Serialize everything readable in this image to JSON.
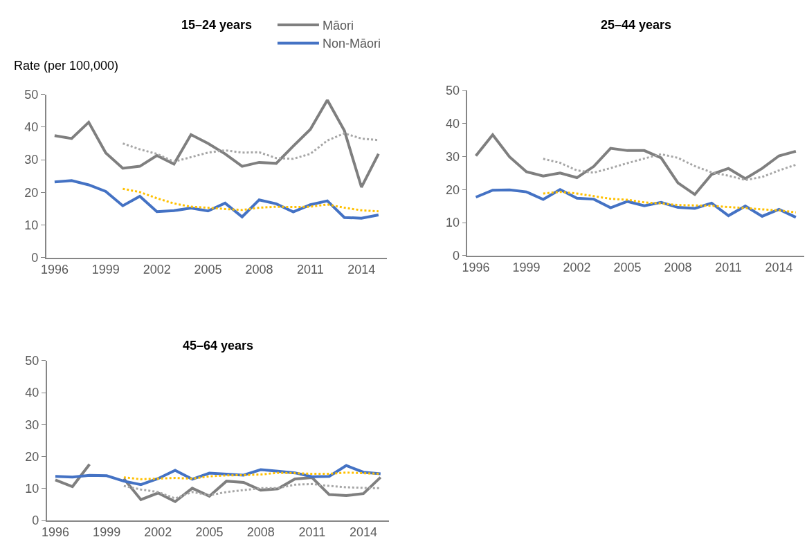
{
  "chart_data": [
    {
      "type": "line",
      "title": "15–24 years",
      "ylabel": "Rate (per 100,000)",
      "x": [
        1996,
        1997,
        1998,
        1999,
        2000,
        2001,
        2002,
        2003,
        2004,
        2005,
        2006,
        2007,
        2008,
        2009,
        2010,
        2011,
        2012,
        2013,
        2014,
        2015
      ],
      "xlim": [
        1995.5,
        2015.5
      ],
      "xticks": [
        1996,
        1999,
        2002,
        2005,
        2008,
        2011,
        2014
      ],
      "ylim": [
        0,
        50
      ],
      "yticks": [
        0,
        10,
        20,
        30,
        40,
        50
      ],
      "legend": "top",
      "marker": "none",
      "line_style": "solid",
      "series": [
        {
          "name": "Māori",
          "color": "#7f7f7f",
          "values": [
            37.4,
            36.5,
            41.5,
            32.1,
            27.4,
            28.0,
            31.3,
            28.7,
            37.7,
            35.0,
            31.8,
            28.0,
            29.2,
            28.9,
            34.2,
            39.3,
            48.3,
            38.9,
            21.6,
            31.8
          ]
        },
        {
          "name": "Non-Māori",
          "color": "#4472c4",
          "values": [
            23.2,
            23.6,
            22.3,
            20.3,
            15.9,
            18.8,
            14.1,
            14.4,
            15.2,
            14.3,
            16.7,
            12.5,
            17.7,
            16.5,
            14.0,
            16.2,
            17.4,
            12.3,
            12.1,
            13.1
          ]
        },
        {
          "color": "#a6a6a6",
          "line_style": "dotted",
          "x": [
            2000,
            2001,
            2002,
            2003,
            2004,
            2005,
            2006,
            2007,
            2008,
            2009,
            2010,
            2011,
            2012,
            2013,
            2014,
            2015
          ],
          "values": [
            35.0,
            33.2,
            31.8,
            29.4,
            30.8,
            32.2,
            32.9,
            32.2,
            32.3,
            30.5,
            30.3,
            31.8,
            35.9,
            38.1,
            36.5,
            36.0
          ]
        },
        {
          "color": "#ffc000",
          "line_style": "dotted",
          "x": [
            2000,
            2001,
            2002,
            2003,
            2004,
            2005,
            2006,
            2007,
            2008,
            2009,
            2010,
            2011,
            2012,
            2013,
            2014,
            2015
          ],
          "values": [
            21.1,
            20.1,
            18.2,
            16.6,
            15.6,
            15.3,
            14.9,
            14.6,
            15.3,
            15.6,
            15.5,
            15.6,
            16.3,
            15.3,
            14.5,
            14.2
          ]
        }
      ]
    },
    {
      "type": "line",
      "title": "25–44 years",
      "x": [
        1996,
        1997,
        1998,
        1999,
        2000,
        2001,
        2002,
        2003,
        2004,
        2005,
        2006,
        2007,
        2008,
        2009,
        2010,
        2011,
        2012,
        2013,
        2014,
        2015
      ],
      "xlim": [
        1995.5,
        2015.5
      ],
      "xticks": [
        1996,
        1999,
        2002,
        2005,
        2008,
        2011,
        2014
      ],
      "ylim": [
        0,
        50
      ],
      "yticks": [
        0,
        10,
        20,
        30,
        40,
        50
      ],
      "marker": "none",
      "line_style": "solid",
      "series": [
        {
          "color": "#7f7f7f",
          "values": [
            30.2,
            36.6,
            29.9,
            25.4,
            24.1,
            25.0,
            23.6,
            27.0,
            32.5,
            31.8,
            31.8,
            29.6,
            22.0,
            18.5,
            24.6,
            26.4,
            23.3,
            26.4,
            30.2,
            31.6
          ]
        },
        {
          "color": "#4472c4",
          "values": [
            17.7,
            19.8,
            19.9,
            19.3,
            17.0,
            20.0,
            17.4,
            17.1,
            14.5,
            16.4,
            15.1,
            16.1,
            14.6,
            14.3,
            15.9,
            12.1,
            15.0,
            11.9,
            14.0,
            11.6
          ]
        },
        {
          "color": "#a6a6a6",
          "line_style": "dotted",
          "x": [
            2000,
            2001,
            2002,
            2003,
            2004,
            2005,
            2006,
            2007,
            2008,
            2009,
            2010,
            2011,
            2012,
            2013,
            2014,
            2015
          ],
          "values": [
            29.3,
            28.1,
            25.8,
            25.1,
            26.5,
            28.0,
            29.4,
            30.7,
            29.6,
            27.1,
            25.2,
            24.2,
            22.9,
            23.8,
            25.8,
            27.5
          ]
        },
        {
          "color": "#ffc000",
          "line_style": "dotted",
          "x": [
            2000,
            2001,
            2002,
            2003,
            2004,
            2005,
            2006,
            2007,
            2008,
            2009,
            2010,
            2011,
            2012,
            2013,
            2014,
            2015
          ],
          "values": [
            18.8,
            19.3,
            18.8,
            18.0,
            17.2,
            16.9,
            16.1,
            15.8,
            15.3,
            15.2,
            15.1,
            14.7,
            14.4,
            14.0,
            13.7,
            13.1
          ]
        }
      ]
    },
    {
      "type": "line",
      "title": "45–64 years",
      "x": [
        1996,
        1997,
        1998,
        1999,
        2000,
        2001,
        2002,
        2003,
        2004,
        2005,
        2006,
        2007,
        2008,
        2009,
        2010,
        2011,
        2012,
        2013,
        2014,
        2015
      ],
      "xlim": [
        1995.5,
        2015.5
      ],
      "xticks": [
        1996,
        1999,
        2002,
        2005,
        2008,
        2011,
        2014
      ],
      "ylim": [
        0,
        50
      ],
      "yticks": [
        0,
        10,
        20,
        30,
        40,
        50
      ],
      "marker": "none",
      "line_style": "solid",
      "series": [
        {
          "color": "#7f7f7f",
          "values": [
            12.7,
            10.6,
            17.6,
            null,
            13.1,
            6.5,
            8.6,
            5.9,
            10.1,
            7.6,
            12.3,
            11.9,
            9.5,
            9.9,
            13.0,
            13.4,
            8.1,
            7.8,
            8.4,
            13.5
          ]
        },
        {
          "color": "#4472c4",
          "values": [
            13.8,
            13.6,
            14.1,
            14.0,
            12.3,
            11.2,
            13.1,
            15.7,
            12.9,
            14.8,
            14.5,
            14.2,
            15.9,
            15.4,
            14.9,
            13.7,
            13.8,
            17.2,
            15.1,
            14.6
          ]
        },
        {
          "color": "#a6a6a6",
          "line_style": "dotted",
          "x": [
            2000,
            2001,
            2002,
            2003,
            2004,
            2005,
            2006,
            2007,
            2008,
            2009,
            2010,
            2011,
            2012,
            2013,
            2014,
            2015
          ],
          "values": [
            10.8,
            9.7,
            8.9,
            6.9,
            8.9,
            7.9,
            8.9,
            9.5,
            10.1,
            10.1,
            11.2,
            11.4,
            10.8,
            10.4,
            10.2,
            10.1
          ]
        },
        {
          "color": "#ffc000",
          "line_style": "dotted",
          "x": [
            2000,
            2001,
            2002,
            2003,
            2004,
            2005,
            2006,
            2007,
            2008,
            2009,
            2010,
            2011,
            2012,
            2013,
            2014,
            2015
          ],
          "values": [
            13.5,
            12.9,
            13.1,
            13.3,
            13.1,
            13.8,
            14.1,
            14.2,
            14.4,
            14.9,
            14.8,
            14.6,
            14.6,
            15.0,
            14.8,
            14.6
          ]
        }
      ]
    }
  ]
}
